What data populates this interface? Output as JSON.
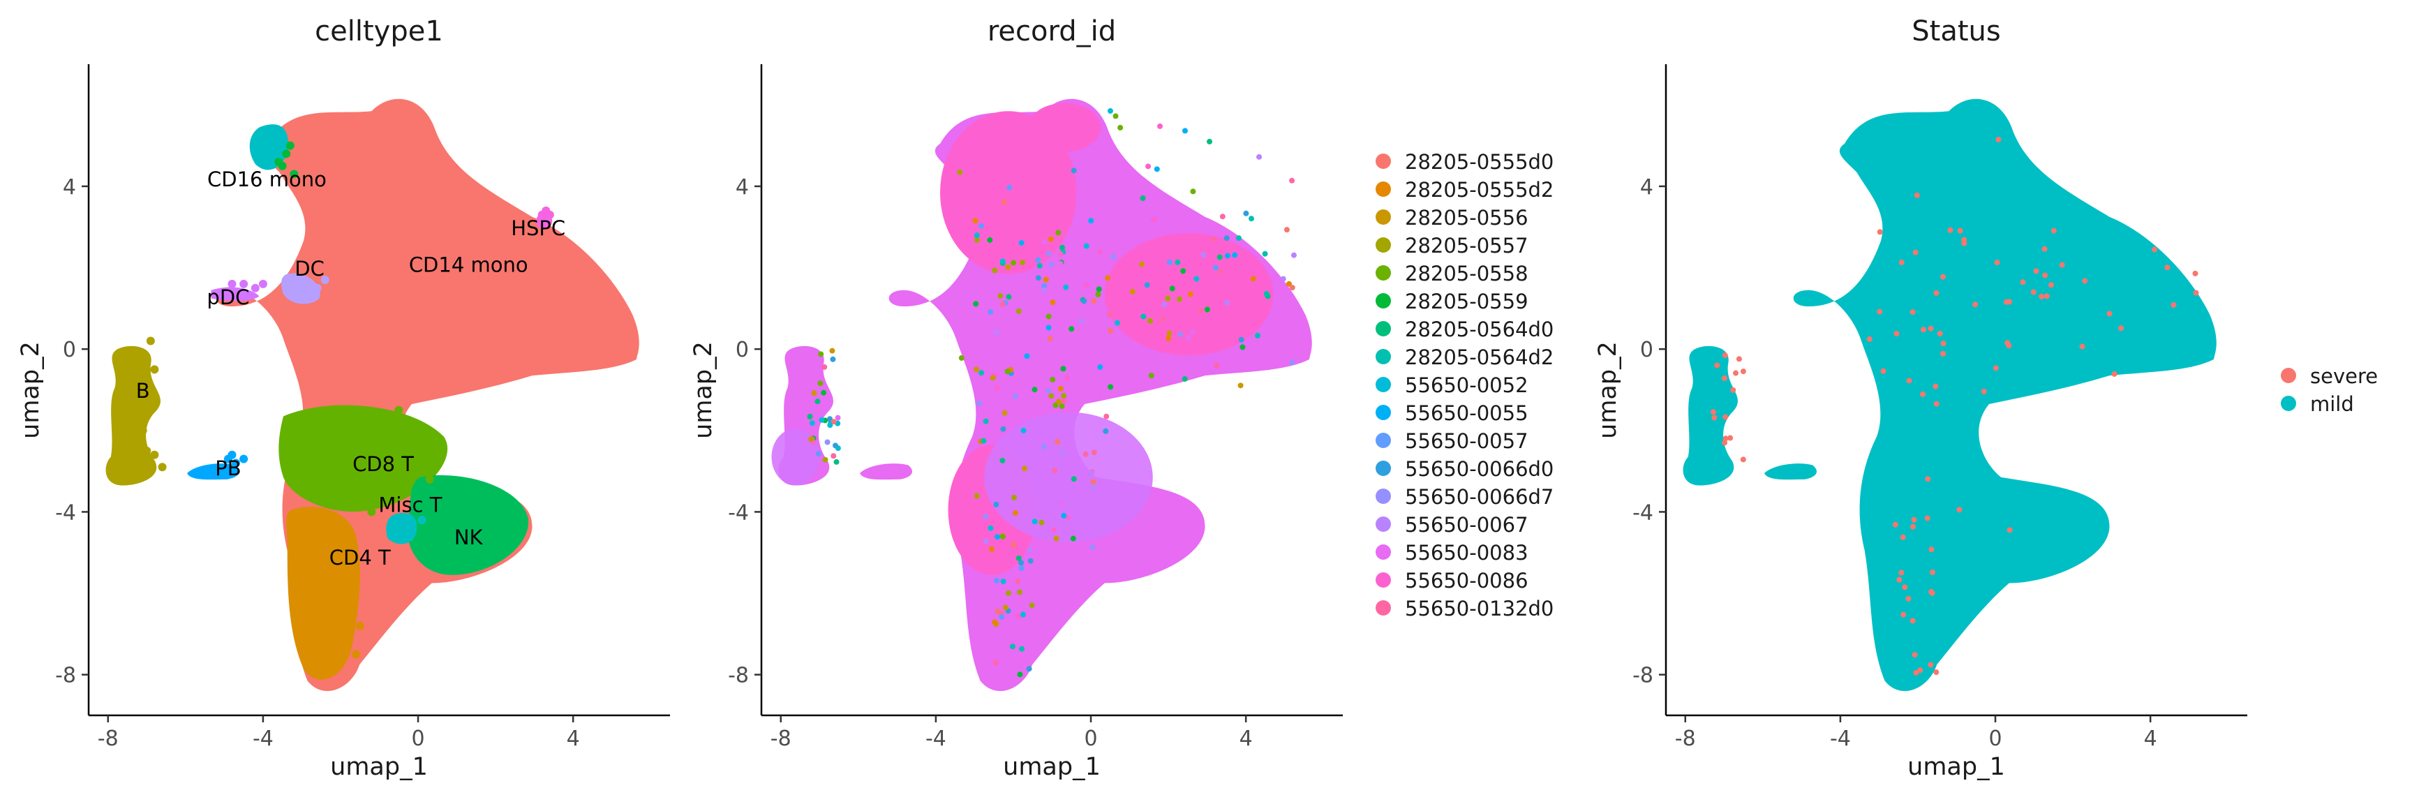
{
  "chart_data": [
    {
      "type": "scatter",
      "title": "celltype1",
      "xlabel": "umap_1",
      "ylabel": "umap_2",
      "xlim": [
        -8.5,
        6.5
      ],
      "ylim": [
        -9,
        7
      ],
      "x_ticks": [
        -8,
        -4,
        0,
        4
      ],
      "y_ticks": [
        -8,
        -4,
        0,
        4
      ],
      "x_tick_labels": [
        "-8",
        "-4",
        "0",
        "4"
      ],
      "y_tick_labels": [
        "-8",
        "-4",
        "0",
        "4"
      ],
      "grid": false,
      "legend": "none",
      "cluster_labels": [
        {
          "text": "CD16 mono",
          "x": -3.9,
          "y": 4.0
        },
        {
          "text": "HSPC",
          "x": 3.1,
          "y": 2.8
        },
        {
          "text": "CD14 mono",
          "x": 1.3,
          "y": 1.9
        },
        {
          "text": "DC",
          "x": -2.8,
          "y": 1.8
        },
        {
          "text": "pDC",
          "x": -4.9,
          "y": 1.1
        },
        {
          "text": "B",
          "x": -7.1,
          "y": -1.2
        },
        {
          "text": "PB",
          "x": -4.9,
          "y": -3.1
        },
        {
          "text": "CD8 T",
          "x": -0.9,
          "y": -3.0
        },
        {
          "text": "Misc T",
          "x": -0.2,
          "y": -4.0
        },
        {
          "text": "NK",
          "x": 1.3,
          "y": -4.8
        },
        {
          "text": "CD4 T",
          "x": -1.5,
          "y": -5.3
        }
      ],
      "clusters": [
        {
          "name": "CD14 mono",
          "color": "#F8766D",
          "points": [
            [
              1.0,
              2.5
            ],
            [
              2.0,
              1.5
            ],
            [
              3.0,
              1.0
            ],
            [
              4.0,
              0.8
            ],
            [
              5.0,
              0.3
            ],
            [
              0.0,
              3.0
            ],
            [
              -1.0,
              3.5
            ],
            [
              -2.0,
              4.5
            ],
            [
              -1.0,
              5.5
            ],
            [
              -0.5,
              6.0
            ],
            [
              0.5,
              4.0
            ],
            [
              1.5,
              0.0
            ],
            [
              0.5,
              -1.0
            ],
            [
              -1.0,
              0.5
            ],
            [
              -2.0,
              2.0
            ],
            [
              2.5,
              3.0
            ],
            [
              3.5,
              2.5
            ],
            [
              0.0,
              1.0
            ],
            [
              1.0,
              -0.5
            ],
            [
              -1.5,
              1.5
            ]
          ]
        },
        {
          "name": "CD16 mono",
          "color": "#00BA38",
          "points": [
            [
              -3.4,
              4.8
            ],
            [
              -3.6,
              4.6
            ],
            [
              -3.2,
              4.3
            ],
            [
              -3.5,
              4.5
            ],
            [
              -3.3,
              5.0
            ]
          ]
        },
        {
          "name": "HSPC",
          "color": "#F564E3",
          "points": [
            [
              3.2,
              3.3
            ],
            [
              3.3,
              3.2
            ],
            [
              3.4,
              3.3
            ],
            [
              3.3,
              3.4
            ]
          ]
        },
        {
          "name": "DC",
          "color": "#B79FFF",
          "points": [
            [
              -2.8,
              1.6
            ],
            [
              -2.6,
              1.5
            ],
            [
              -2.4,
              1.7
            ],
            [
              -2.9,
              1.4
            ]
          ]
        },
        {
          "name": "pDC",
          "color": "#D575FE",
          "points": [
            [
              -4.8,
              1.6
            ],
            [
              -4.5,
              1.6
            ],
            [
              -4.2,
              1.5
            ],
            [
              -4.0,
              1.6
            ]
          ]
        },
        {
          "name": "B",
          "color": "#AEA200",
          "points": [
            [
              -7.0,
              -2.5
            ],
            [
              -7.2,
              -2.8
            ],
            [
              -6.8,
              -2.6
            ],
            [
              -7.4,
              -2.7
            ],
            [
              -6.9,
              -1.5
            ],
            [
              -6.8,
              -0.5
            ],
            [
              -6.9,
              0.2
            ],
            [
              -6.6,
              -2.9
            ],
            [
              -7.1,
              -2.0
            ]
          ]
        },
        {
          "name": "PB",
          "color": "#00A9FF",
          "points": [
            [
              -4.9,
              -2.7
            ],
            [
              -4.7,
              -2.8
            ],
            [
              -4.5,
              -2.7
            ],
            [
              -4.8,
              -2.6
            ]
          ]
        },
        {
          "name": "CD8 T",
          "color": "#64B200",
          "points": [
            [
              -1.5,
              -3.0
            ],
            [
              -0.5,
              -2.5
            ],
            [
              -1.0,
              -3.5
            ],
            [
              0.0,
              -2.0
            ],
            [
              -1.8,
              -2.5
            ],
            [
              -0.5,
              -1.5
            ],
            [
              -1.2,
              -4.0
            ],
            [
              0.3,
              -3.2
            ]
          ]
        },
        {
          "name": "Misc T",
          "color": "#00BFC4",
          "points": [
            [
              -0.2,
              -4.3
            ],
            [
              -0.5,
              -4.5
            ],
            [
              0.1,
              -4.2
            ],
            [
              -0.3,
              -4.6
            ]
          ]
        },
        {
          "name": "NK",
          "color": "#00BD5C",
          "points": [
            [
              1.0,
              -4.5
            ],
            [
              1.5,
              -4.2
            ],
            [
              2.0,
              -4.5
            ],
            [
              0.8,
              -4.8
            ],
            [
              1.5,
              -4.8
            ],
            [
              2.3,
              -4.2
            ],
            [
              1.2,
              -3.8
            ]
          ]
        },
        {
          "name": "CD4 T",
          "color": "#DB8E00",
          "points": [
            [
              -1.8,
              -5.5
            ],
            [
              -2.0,
              -6.5
            ],
            [
              -1.6,
              -7.5
            ],
            [
              -1.9,
              -5.0
            ],
            [
              -2.2,
              -6.0
            ],
            [
              -1.5,
              -6.8
            ]
          ]
        }
      ]
    },
    {
      "type": "scatter",
      "title": "record_id",
      "xlabel": "umap_1",
      "ylabel": "umap_2",
      "xlim": [
        -8.5,
        6.5
      ],
      "ylim": [
        -9,
        7
      ],
      "x_ticks": [
        -8,
        -4,
        0,
        4
      ],
      "y_ticks": [
        -8,
        -4,
        0,
        4
      ],
      "x_tick_labels": [
        "-8",
        "-4",
        "0",
        "4"
      ],
      "y_tick_labels": [
        "-8",
        "-4",
        "0",
        "4"
      ],
      "grid": false,
      "legend": "right",
      "series": [
        {
          "name": "28205-0555d0",
          "color": "#F8766D"
        },
        {
          "name": "28205-0555d2",
          "color": "#E58700"
        },
        {
          "name": "28205-0556",
          "color": "#C99800"
        },
        {
          "name": "28205-0557",
          "color": "#A3A500"
        },
        {
          "name": "28205-0558",
          "color": "#6BB100"
        },
        {
          "name": "28205-0559",
          "color": "#00BA38"
        },
        {
          "name": "28205-0564d0",
          "color": "#00BF7D"
        },
        {
          "name": "28205-0564d2",
          "color": "#00C0AF"
        },
        {
          "name": "55650-0052",
          "color": "#00BCD8"
        },
        {
          "name": "55650-0055",
          "color": "#00B0F6"
        },
        {
          "name": "55650-0057",
          "color": "#619CFF"
        },
        {
          "name": "55650-0066d0",
          "color": "#2E9FDF"
        },
        {
          "name": "55650-0066d7",
          "color": "#9590FF"
        },
        {
          "name": "55650-0067",
          "color": "#B983FF"
        },
        {
          "name": "55650-0083",
          "color": "#E76BF3"
        },
        {
          "name": "55650-0086",
          "color": "#FD61D1"
        },
        {
          "name": "55650-0132d0",
          "color": "#FF67A4"
        }
      ]
    },
    {
      "type": "scatter",
      "title": "Status",
      "xlabel": "umap_1",
      "ylabel": "umap_2",
      "xlim": [
        -8.5,
        6.5
      ],
      "ylim": [
        -9,
        7
      ],
      "x_ticks": [
        -8,
        -4,
        0,
        4
      ],
      "y_ticks": [
        -8,
        -4,
        0,
        4
      ],
      "x_tick_labels": [
        "-8",
        "-4",
        "0",
        "4"
      ],
      "y_tick_labels": [
        "-8",
        "-4",
        "0",
        "4"
      ],
      "grid": false,
      "legend": "right",
      "series": [
        {
          "name": "severe",
          "color": "#F8766D"
        },
        {
          "name": "mild",
          "color": "#00BFC4"
        }
      ]
    }
  ]
}
